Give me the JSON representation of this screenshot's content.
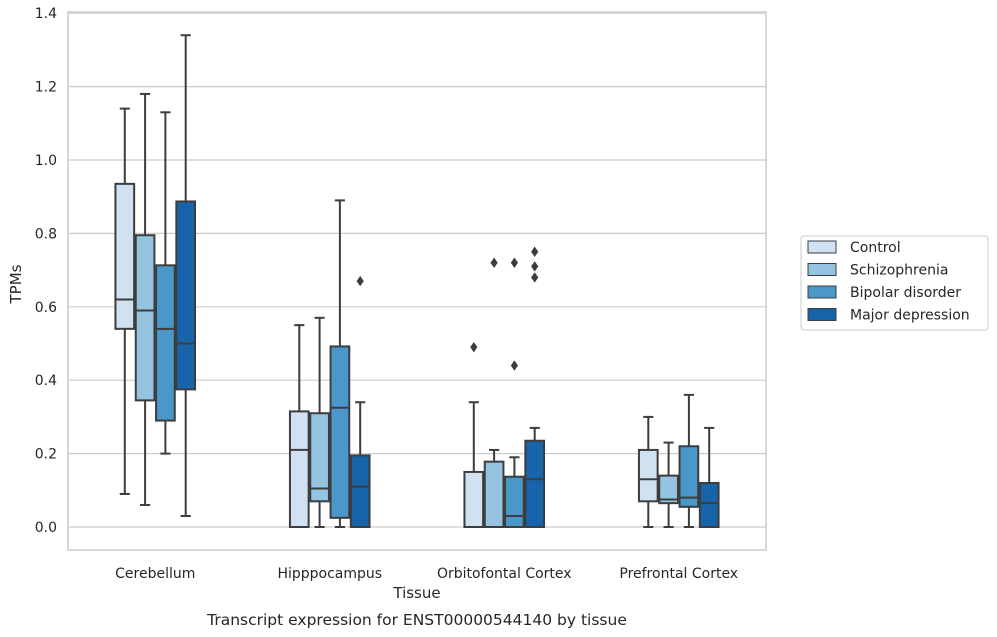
{
  "caption": "Transcript expression for ENST00000544140 by tissue",
  "chart_data": {
    "type": "boxplot",
    "xlabel": "Tissue",
    "ylabel": "TPMs",
    "ylim": [
      -0.06,
      1.41
    ],
    "yticks": [
      "0.0",
      "0.2",
      "0.4",
      "0.6",
      "0.8",
      "1.0",
      "1.2",
      "1.4"
    ],
    "grid": "horizontal",
    "legend_position": "right",
    "categories": [
      "Cerebellum",
      "Hipppocampus",
      "Orbitofontal Cortex",
      "Prefrontal Cortex"
    ],
    "series": [
      {
        "name": "Control",
        "color": "#d0e1f2",
        "boxes": [
          {
            "whisker_low": 0.09,
            "q1": 0.54,
            "median": 0.62,
            "q3": 0.935,
            "whisker_high": 1.14,
            "outliers": []
          },
          {
            "whisker_low": 0.0,
            "q1": 0.0,
            "median": 0.21,
            "q3": 0.315,
            "whisker_high": 0.55,
            "outliers": []
          },
          {
            "whisker_low": 0.0,
            "q1": 0.0,
            "median": 0.0,
            "q3": 0.15,
            "whisker_high": 0.34,
            "outliers": [
              0.49
            ]
          },
          {
            "whisker_low": 0.0,
            "q1": 0.07,
            "median": 0.13,
            "q3": 0.21,
            "whisker_high": 0.3,
            "outliers": []
          }
        ]
      },
      {
        "name": "Schizophrenia",
        "color": "#94c4df",
        "boxes": [
          {
            "whisker_low": 0.06,
            "q1": 0.345,
            "median": 0.59,
            "q3": 0.795,
            "whisker_high": 1.18,
            "outliers": []
          },
          {
            "whisker_low": 0.0,
            "q1": 0.07,
            "median": 0.105,
            "q3": 0.31,
            "whisker_high": 0.57,
            "outliers": []
          },
          {
            "whisker_low": 0.0,
            "q1": 0.0,
            "median": 0.0,
            "q3": 0.178,
            "whisker_high": 0.21,
            "outliers": [
              0.72
            ]
          },
          {
            "whisker_low": 0.0,
            "q1": 0.065,
            "median": 0.075,
            "q3": 0.14,
            "whisker_high": 0.23,
            "outliers": []
          }
        ]
      },
      {
        "name": "Bipolar disorder",
        "color": "#4a98c9",
        "boxes": [
          {
            "whisker_low": 0.2,
            "q1": 0.29,
            "median": 0.54,
            "q3": 0.713,
            "whisker_high": 1.13,
            "outliers": []
          },
          {
            "whisker_low": 0.0,
            "q1": 0.025,
            "median": 0.325,
            "q3": 0.492,
            "whisker_high": 0.89,
            "outliers": []
          },
          {
            "whisker_low": 0.0,
            "q1": 0.0,
            "median": 0.03,
            "q3": 0.137,
            "whisker_high": 0.19,
            "outliers": [
              0.44,
              0.72
            ]
          },
          {
            "whisker_low": 0.0,
            "q1": 0.055,
            "median": 0.08,
            "q3": 0.22,
            "whisker_high": 0.36,
            "outliers": []
          }
        ]
      },
      {
        "name": "Major depression",
        "color": "#1764ab",
        "boxes": [
          {
            "whisker_low": 0.03,
            "q1": 0.375,
            "median": 0.5,
            "q3": 0.887,
            "whisker_high": 1.34,
            "outliers": []
          },
          {
            "whisker_low": 0.0,
            "q1": 0.0,
            "median": 0.11,
            "q3": 0.195,
            "whisker_high": 0.34,
            "outliers": [
              0.67
            ]
          },
          {
            "whisker_low": 0.0,
            "q1": 0.0,
            "median": 0.13,
            "q3": 0.235,
            "whisker_high": 0.27,
            "outliers": [
              0.68,
              0.71,
              0.75
            ]
          },
          {
            "whisker_low": 0.0,
            "q1": 0.0,
            "median": 0.065,
            "q3": 0.12,
            "whisker_high": 0.27,
            "outliers": []
          }
        ]
      }
    ]
  }
}
